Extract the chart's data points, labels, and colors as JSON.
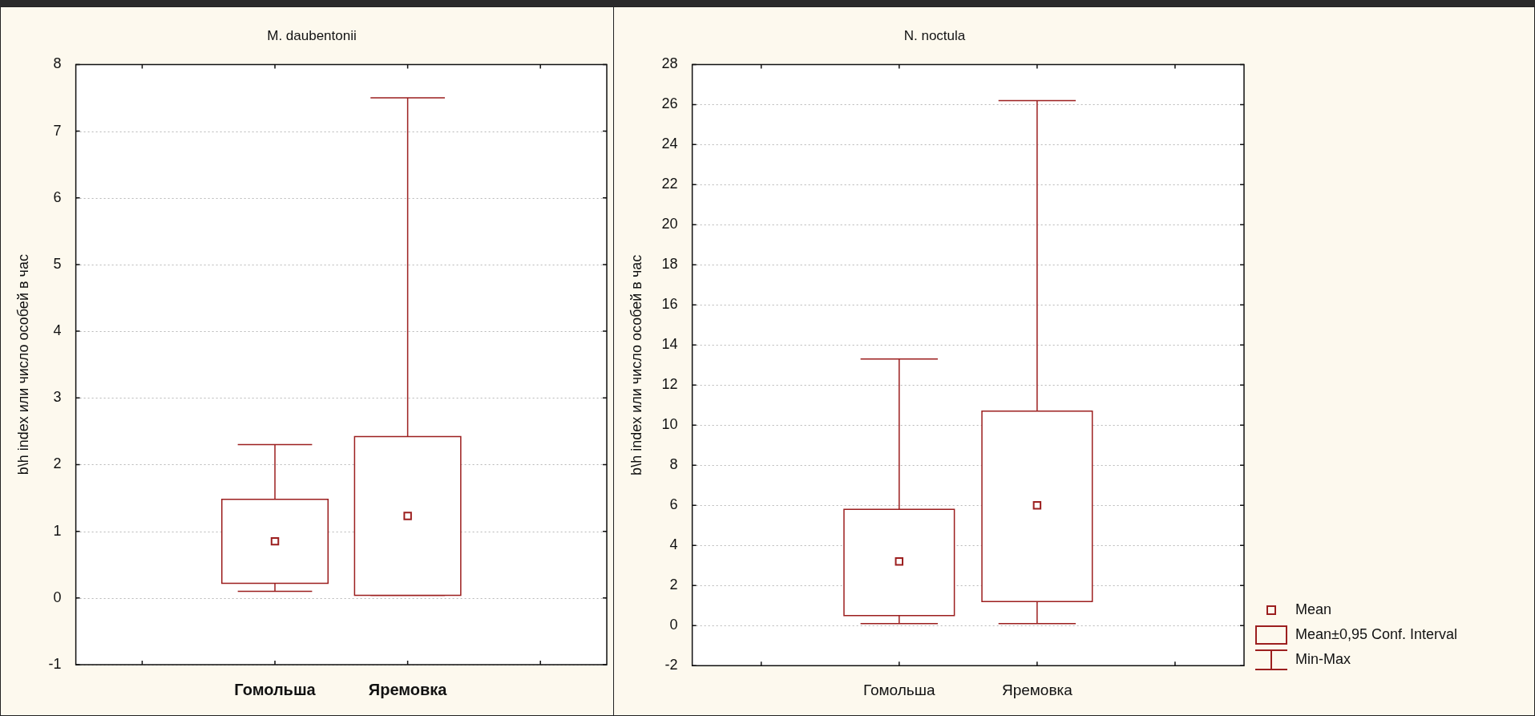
{
  "chart_data": [
    {
      "type": "box",
      "title": "M. daubentonii",
      "ylabel": "b\\h index или число особей в час",
      "categories": [
        "Гомольша",
        "Яремовка"
      ],
      "color": "#9c1f1f",
      "marker": "square",
      "grid": "y",
      "ylim": [
        -1,
        8
      ],
      "yticks": [
        -1,
        0,
        1,
        2,
        3,
        4,
        5,
        6,
        7,
        8
      ],
      "boxes": [
        {
          "low": 0.1,
          "q1": 0.22,
          "q3": 1.48,
          "high": 2.3,
          "mean": 0.85
        },
        {
          "low": 0.04,
          "q1": 0.04,
          "q3": 2.42,
          "high": 7.5,
          "mean": 1.23
        }
      ]
    },
    {
      "type": "box",
      "title": "N. noctula",
      "ylabel": "b\\h index или число особей в час",
      "categories": [
        "Гомольша",
        "Яремовка"
      ],
      "color": "#9c1f1f",
      "marker": "square",
      "grid": "y",
      "ylim": [
        -2,
        28
      ],
      "yticks": [
        -2,
        0,
        2,
        4,
        6,
        8,
        10,
        12,
        14,
        16,
        18,
        20,
        22,
        24,
        26,
        28
      ],
      "boxes": [
        {
          "low": 0.1,
          "q1": 0.5,
          "q3": 5.8,
          "high": 13.3,
          "mean": 3.2
        },
        {
          "low": 0.1,
          "q1": 1.2,
          "q3": 10.7,
          "high": 26.2,
          "mean": 6.0
        }
      ],
      "annotations": [
        "Mean",
        "Mean±0,95 Conf. Interval",
        "Min-Max"
      ]
    }
  ]
}
